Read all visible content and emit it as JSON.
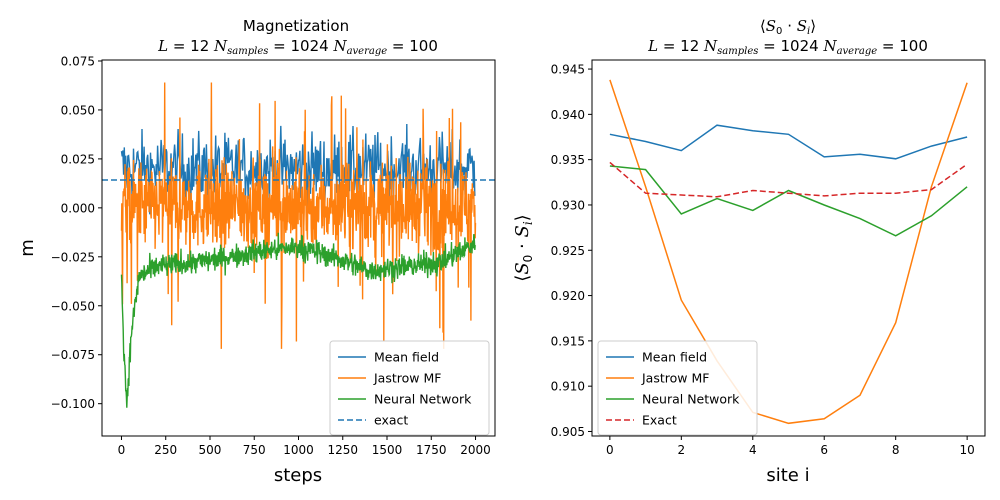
{
  "chart_data": [
    {
      "type": "line",
      "title_line1": "Magnetization",
      "title_line2": "L = 12 N_samples = 1024 N_average = 100",
      "xlabel": "steps",
      "ylabel": "m",
      "xlim": [
        -110,
        2110
      ],
      "ylim": [
        -0.1165,
        0.0755
      ],
      "xticks": [
        0,
        250,
        500,
        750,
        1000,
        1250,
        1500,
        1750,
        2000
      ],
      "xtick_labels": [
        "0",
        "250",
        "500",
        "750",
        "1000",
        "1250",
        "1500",
        "1750",
        "2000"
      ],
      "yticks": [
        -0.1,
        -0.075,
        -0.05,
        -0.025,
        0.0,
        0.025,
        0.05,
        0.075
      ],
      "ytick_labels": [
        "−0.100",
        "−0.075",
        "−0.050",
        "−0.025",
        "0.000",
        "0.025",
        "0.050",
        "0.075"
      ],
      "grid": false,
      "legend_position": "lower-right",
      "series": [
        {
          "name": "Mean field",
          "color": "#1f77b4",
          "style": "solid",
          "approx_level": 0.02,
          "x": [
            0,
            2000
          ]
        },
        {
          "name": "Jastrow MF",
          "color": "#ff7f0e",
          "style": "solid",
          "approx_range": [
            -0.072,
            0.064
          ],
          "x": [
            0,
            2000
          ]
        },
        {
          "name": "Neural Network",
          "color": "#2ca02c",
          "style": "solid",
          "x": [
            0,
            15,
            30,
            40,
            60,
            100,
            200,
            400,
            600,
            800,
            1000,
            1200,
            1400,
            1600,
            1800,
            2000
          ],
          "y": [
            -0.035,
            -0.075,
            -0.1,
            -0.085,
            -0.06,
            -0.035,
            -0.03,
            -0.028,
            -0.025,
            -0.022,
            -0.02,
            -0.025,
            -0.032,
            -0.03,
            -0.028,
            -0.018
          ]
        },
        {
          "name": "exact",
          "color": "#1f77b4",
          "style": "dashed",
          "value": 0.0142
        }
      ]
    },
    {
      "type": "line",
      "title_line1": "⟨S0 · Si⟩",
      "title_line2": "L = 12  N_samples = 1024 N_average = 100",
      "xlabel": "site i",
      "ylabel": "⟨S0 · Si⟩",
      "xlim": [
        -0.5,
        10.5
      ],
      "ylim": [
        0.9045,
        0.946
      ],
      "xticks": [
        0,
        2,
        4,
        6,
        8,
        10
      ],
      "xtick_labels": [
        "0",
        "2",
        "4",
        "6",
        "8",
        "10"
      ],
      "yticks": [
        0.905,
        0.91,
        0.915,
        0.92,
        0.925,
        0.93,
        0.935,
        0.94,
        0.945
      ],
      "ytick_labels": [
        "0.905",
        "0.910",
        "0.915",
        "0.920",
        "0.925",
        "0.930",
        "0.935",
        "0.940",
        "0.945"
      ],
      "grid": false,
      "legend_position": "lower-left",
      "x": [
        0,
        1,
        2,
        3,
        4,
        5,
        6,
        7,
        8,
        9,
        10
      ],
      "series": [
        {
          "name": "Mean field",
          "color": "#1f77b4",
          "style": "solid",
          "values": [
            0.9378,
            0.937,
            0.936,
            0.9388,
            0.9382,
            0.9378,
            0.9353,
            0.9356,
            0.9351,
            0.9365,
            0.9375
          ]
        },
        {
          "name": "Jastrow MF",
          "color": "#ff7f0e",
          "style": "solid",
          "values": [
            0.9438,
            0.932,
            0.9195,
            0.9128,
            0.9071,
            0.9059,
            0.9064,
            0.909,
            0.917,
            0.932,
            0.9435
          ]
        },
        {
          "name": "Neural Network",
          "color": "#2ca02c",
          "style": "solid",
          "values": [
            0.9343,
            0.9339,
            0.929,
            0.9307,
            0.9294,
            0.9316,
            0.93,
            0.9285,
            0.9266,
            0.9288,
            0.932
          ]
        },
        {
          "name": "Exact",
          "color": "#d62728",
          "style": "dashed",
          "values": [
            0.9347,
            0.9313,
            0.9311,
            0.9309,
            0.9316,
            0.9313,
            0.931,
            0.9313,
            0.9313,
            0.9317,
            0.9345
          ]
        }
      ]
    }
  ]
}
